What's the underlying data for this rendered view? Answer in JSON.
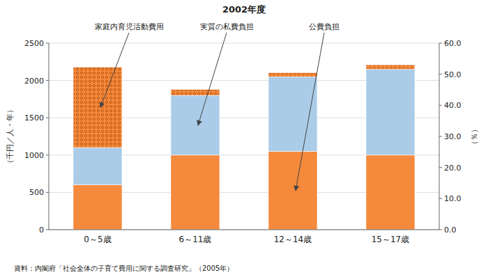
{
  "chart_data": {
    "type": "bar",
    "stacked": true,
    "title": "2002年度",
    "ylabel": "（千円／人・年）",
    "y2label": "（％）",
    "source": "資料：内閣府「社会全体の子育て費用に関する調査研究」（2005年）",
    "categories": [
      "0～5歳",
      "6～11歳",
      "12～14歳",
      "15～17歳"
    ],
    "series": [
      {
        "name": "公費負担",
        "color": "#F5893C",
        "values": [
          600,
          1000,
          1050,
          1000
        ]
      },
      {
        "name": "実質の私費負担",
        "color": "#AACCE8",
        "values": [
          500,
          800,
          1000,
          1150
        ]
      },
      {
        "name": "家庭内育児活動費用",
        "color": "#F5893C",
        "values": [
          1080,
          80,
          55,
          60
        ]
      }
    ],
    "ylim": [
      0,
      2500
    ],
    "yticks": [
      0,
      500,
      1000,
      1500,
      2000,
      2500
    ],
    "y2lim": [
      0.0,
      60.0
    ],
    "y2ticks": [
      {
        "value": 0,
        "label": "0.0"
      },
      {
        "value": 10,
        "label": "10.0"
      },
      {
        "value": 20,
        "label": "20.0"
      },
      {
        "value": 30,
        "label": "30.0"
      },
      {
        "value": 40,
        "label": "40.0"
      },
      {
        "value": 50,
        "label": "50.0"
      },
      {
        "value": 60,
        "label": "60.0"
      }
    ],
    "grid": true
  }
}
